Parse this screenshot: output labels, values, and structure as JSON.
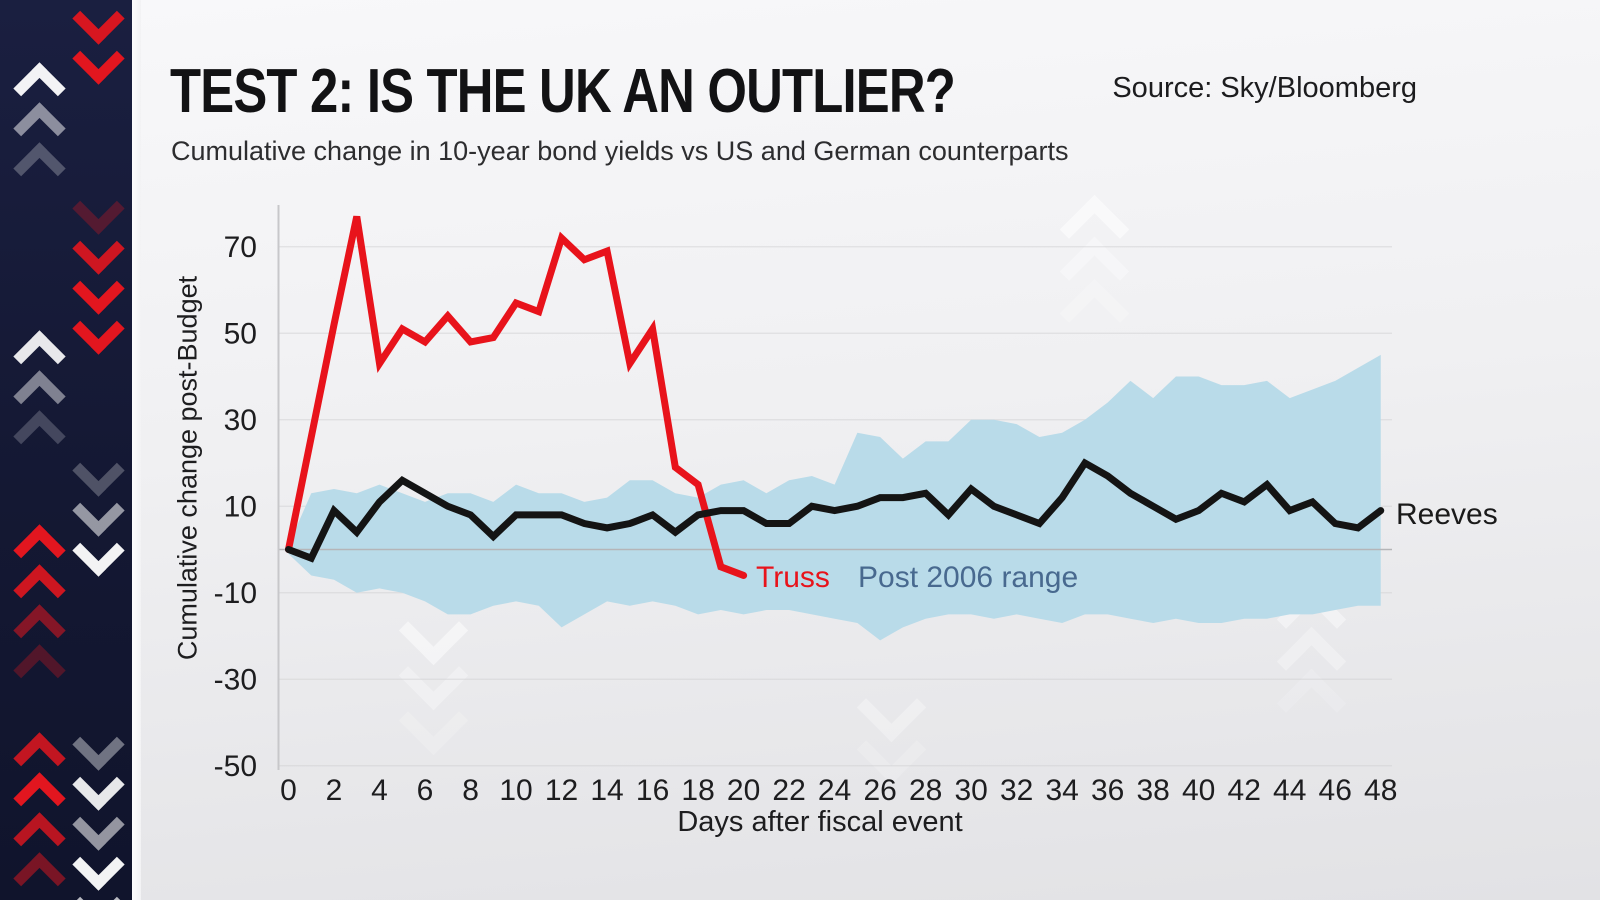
{
  "header": {
    "title": "TEST 2: IS THE UK AN OUTLIER?",
    "subtitle": "Cumulative change in 10-year bond yields vs US and German counterparts",
    "source": "Source: Sky/Bloomberg"
  },
  "colors": {
    "accent_red": "#e2161f",
    "sidebar_navy": "#141833",
    "band_blue": "#b9dbe9",
    "band_label_blue": "#48698f",
    "text_dark": "#1d1d1f"
  },
  "chart_data": {
    "type": "line",
    "title": "TEST 2: IS THE UK AN OUTLIER?",
    "subtitle": "Cumulative change in 10-year bond yields vs US and German counterparts",
    "xlabel": "Days after fiscal event",
    "ylabel": "Cumulative change post-Budget",
    "xlim": [
      0,
      48
    ],
    "ylim": [
      -50,
      78
    ],
    "grid": "horizontal, faint; darker line at zero",
    "legend_position": "inline annotations next to series",
    "x_ticks": [
      0,
      2,
      4,
      6,
      8,
      10,
      12,
      14,
      16,
      18,
      20,
      22,
      24,
      26,
      28,
      30,
      32,
      34,
      36,
      38,
      40,
      42,
      44,
      46,
      48
    ],
    "y_ticks": [
      70,
      50,
      30,
      10,
      -10,
      -30,
      -50
    ],
    "x_step_days": 1,
    "series": [
      {
        "name": "Truss",
        "color": "#e8131b",
        "days_start": 0,
        "values": [
          0,
          26,
          52,
          77,
          43,
          51,
          48,
          54,
          48,
          49,
          57,
          55,
          72,
          67,
          69,
          43,
          51,
          19,
          15,
          -4,
          -6
        ]
      },
      {
        "name": "Reeves",
        "color": "#141414",
        "days_start": 0,
        "values": [
          0,
          -2,
          9,
          4,
          11,
          16,
          13,
          10,
          8,
          3,
          8,
          8,
          8,
          6,
          5,
          6,
          8,
          4,
          8,
          9,
          9,
          6,
          6,
          10,
          9,
          10,
          12,
          12,
          13,
          8,
          14,
          10,
          8,
          6,
          12,
          20,
          17,
          13,
          10,
          7,
          9,
          13,
          11,
          15,
          9,
          11,
          6,
          5,
          9
        ]
      }
    ],
    "band": {
      "name": "Post 2006 range",
      "color": "#b9dbe9",
      "days_start": 0,
      "upper": [
        1,
        13,
        14,
        13,
        15,
        13,
        11,
        13,
        13,
        11,
        15,
        13,
        13,
        11,
        12,
        16,
        16,
        13,
        12,
        15,
        16,
        13,
        16,
        17,
        15,
        27,
        26,
        21,
        25,
        25,
        30,
        30,
        29,
        26,
        27,
        30,
        34,
        39,
        35,
        40,
        40,
        38,
        38,
        39,
        35,
        37,
        39,
        42,
        45
      ],
      "lower": [
        -1,
        -6,
        -7,
        -10,
        -9,
        -10,
        -12,
        -15,
        -15,
        -13,
        -12,
        -13,
        -18,
        -15,
        -12,
        -13,
        -12,
        -13,
        -15,
        -14,
        -15,
        -14,
        -14,
        -15,
        -16,
        -17,
        -21,
        -18,
        -16,
        -15,
        -15,
        -16,
        -15,
        -16,
        -17,
        -15,
        -15,
        -16,
        -17,
        -16,
        -17,
        -17,
        -16,
        -16,
        -15,
        -15,
        -14,
        -13,
        -13
      ]
    },
    "annotations": [
      {
        "text": "Truss",
        "color": "#e8131b"
      },
      {
        "text": "Post 2006 range",
        "color": "#48698f"
      },
      {
        "text": "Reeves",
        "color": "#1a1a1a"
      }
    ]
  }
}
